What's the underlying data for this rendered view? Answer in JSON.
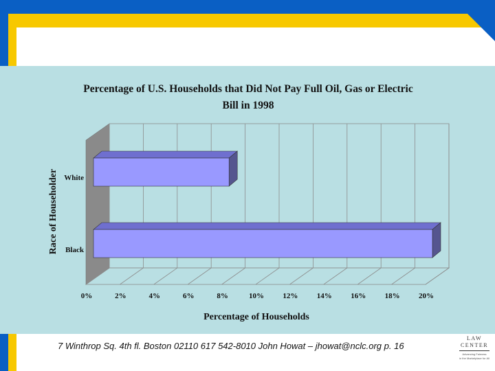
{
  "chart_data": {
    "type": "bar",
    "orientation": "horizontal",
    "title": "Percentage of U.S. Households that Did Not Pay Full Oil, Gas or Electric Bill in 1998",
    "title_lines": [
      "Percentage of U.S. Households that Did Not Pay Full Oil, Gas or Electric",
      "Bill in 1998"
    ],
    "xlabel": "Percentage of Households",
    "ylabel": "Race of Householder",
    "categories": [
      "White",
      "Black"
    ],
    "values": [
      8.0,
      20.0
    ],
    "xlim": [
      0,
      20
    ],
    "x_ticks": [
      "0%",
      "2%",
      "4%",
      "6%",
      "8%",
      "10%",
      "12%",
      "14%",
      "16%",
      "18%",
      "20%"
    ],
    "grid": true,
    "bar_color": "#9999ff",
    "legend": "none"
  },
  "footer": {
    "text": "7 Winthrop Sq. 4th fl. Boston 02110  617 542-8010  John Howat – jhowat@nclc.org  p. 16"
  },
  "logo": {
    "line1": "LAW",
    "line2": "CENTER",
    "tagline1": "Advancing Fairness",
    "tagline2": "in the Marketplace for All"
  },
  "colors": {
    "frame_blue": "#0a5fc4",
    "frame_yellow": "#f7c800",
    "panel": "#b9dfe3",
    "bar_fill": "#9999ff",
    "bar_side": "#55558f"
  }
}
